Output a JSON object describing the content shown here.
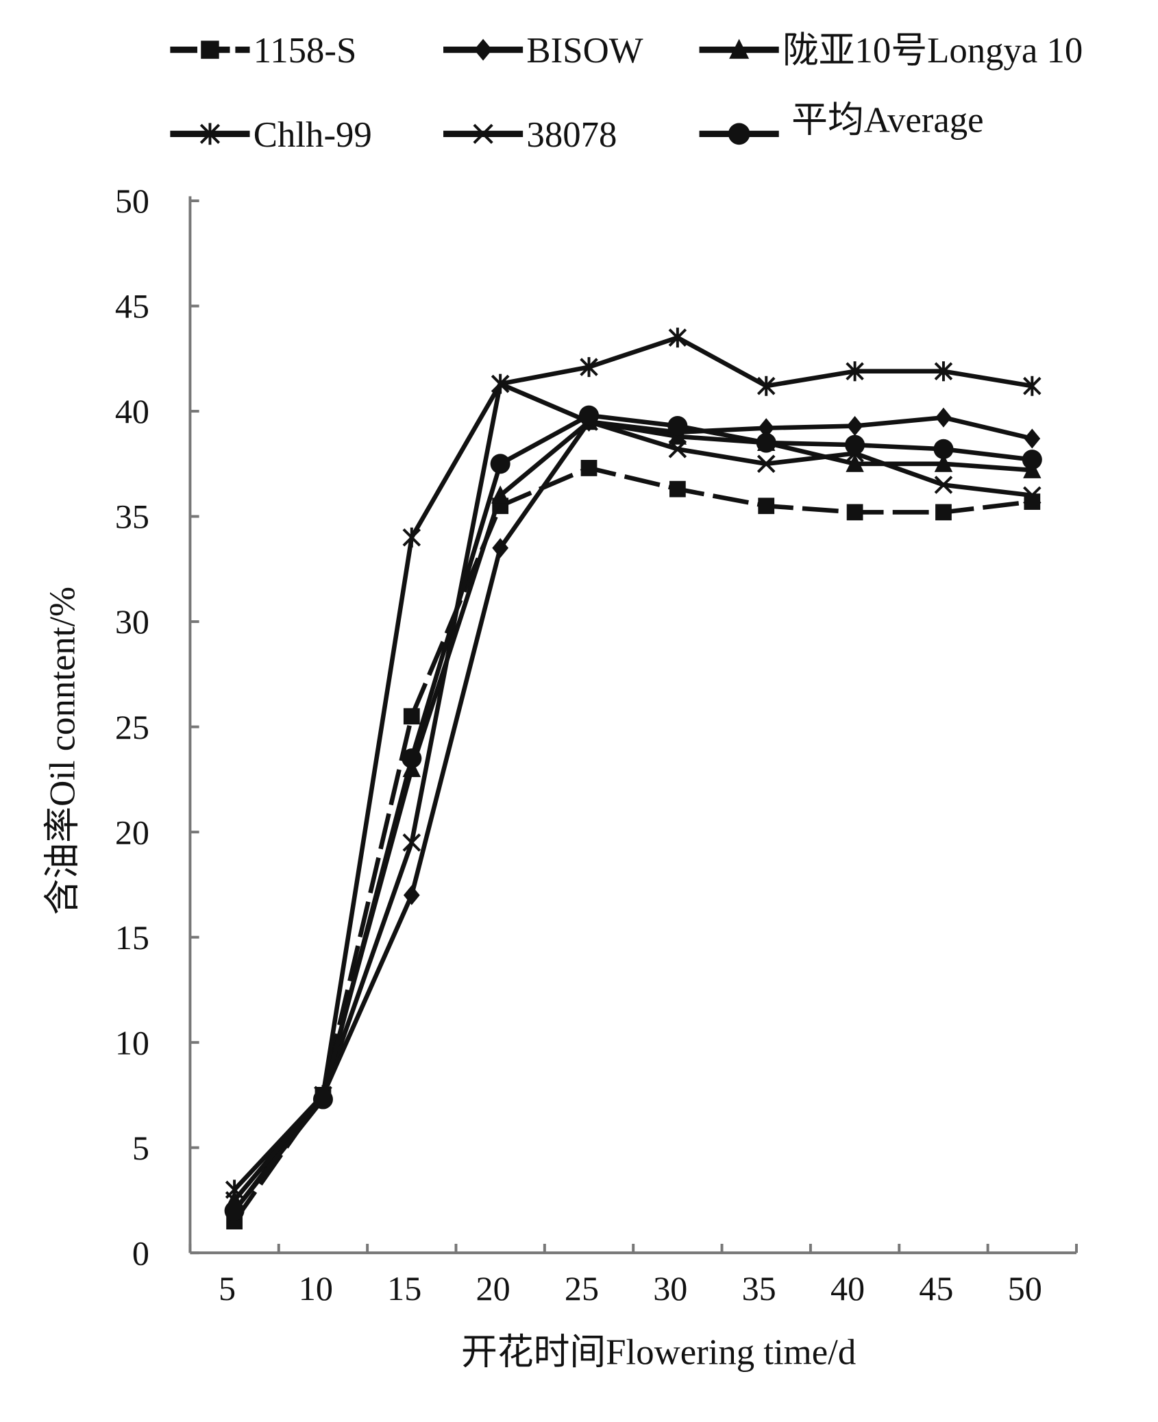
{
  "chart_data": {
    "type": "line",
    "title": "",
    "xlabel": "开花时间Flowering time/d",
    "ylabel": "含油率Oil conntent/%",
    "x": [
      5,
      10,
      15,
      20,
      25,
      30,
      35,
      40,
      45,
      50
    ],
    "x_tick_labels": [
      "5",
      "10",
      "15",
      "20",
      "25",
      "30",
      "35",
      "40",
      "45",
      "50"
    ],
    "y_tick_labels": [
      "0",
      "5",
      "10",
      "15",
      "20",
      "25",
      "30",
      "35",
      "40",
      "45",
      "50"
    ],
    "ylim": [
      0,
      50
    ],
    "grid": false,
    "legend_placement": "top",
    "series": [
      {
        "name": "1158-S",
        "marker": "square",
        "dashed": true,
        "values": [
          1.5,
          7.5,
          25.5,
          35.5,
          37.3,
          36.3,
          35.5,
          35.2,
          35.2,
          35.7
        ]
      },
      {
        "name": "BISOW",
        "marker": "diamond",
        "dashed": false,
        "values": [
          2.0,
          7.5,
          17.0,
          33.5,
          39.5,
          39.0,
          39.2,
          39.3,
          39.7,
          38.7
        ]
      },
      {
        "name": "陇亚10号Longya 10",
        "marker": "triangle",
        "dashed": false,
        "values": [
          2.5,
          7.5,
          23.0,
          36.0,
          39.5,
          38.8,
          38.5,
          37.5,
          37.5,
          37.2
        ]
      },
      {
        "name": "Chlh-99",
        "marker": "asterisk",
        "dashed": false,
        "values": [
          3.0,
          7.5,
          34.0,
          41.3,
          42.1,
          43.5,
          41.2,
          41.9,
          41.9,
          41.2
        ]
      },
      {
        "name": "38078",
        "marker": "x",
        "dashed": false,
        "values": [
          2.5,
          7.5,
          19.5,
          41.3,
          39.5,
          38.2,
          37.5,
          38.0,
          36.5,
          36.0
        ]
      },
      {
        "name": "平均Average",
        "marker": "circle",
        "dashed": false,
        "values": [
          2.0,
          7.3,
          23.5,
          37.5,
          39.8,
          39.3,
          38.5,
          38.4,
          38.2,
          37.7
        ]
      }
    ],
    "colors": {
      "line": "#111111",
      "axis": "#777777"
    }
  }
}
